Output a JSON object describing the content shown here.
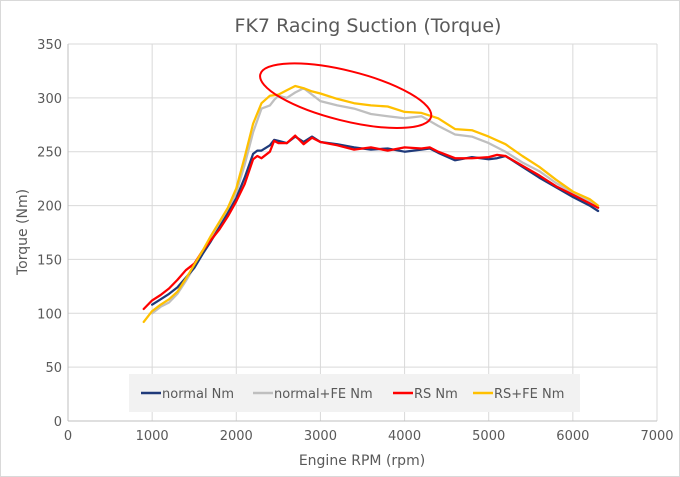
{
  "chart_data": {
    "type": "line",
    "title": "FK7 Racing Suction (Torque)",
    "xlabel": "Engine RPM (rpm)",
    "ylabel": "Torque (Nm)",
    "xlim": [
      0,
      7000
    ],
    "ylim": [
      0,
      350
    ],
    "xticks": [
      0,
      1000,
      2000,
      3000,
      4000,
      5000,
      6000,
      7000
    ],
    "yticks": [
      0,
      50,
      100,
      150,
      200,
      250,
      300,
      350
    ],
    "grid": true,
    "legend_position": "bottom-inside",
    "annotation": {
      "type": "ellipse",
      "color": "#ff0000",
      "center_rpm": 3300,
      "center_nm": 302
    },
    "series": [
      {
        "name": "normal Nm",
        "color": "#1f3a7a",
        "x": [
          1000,
          1100,
          1200,
          1300,
          1400,
          1500,
          1600,
          1700,
          1800,
          1900,
          2000,
          2100,
          2200,
          2250,
          2300,
          2400,
          2450,
          2500,
          2600,
          2700,
          2800,
          2900,
          3000,
          3200,
          3400,
          3600,
          3800,
          4000,
          4200,
          4300,
          4400,
          4600,
          4800,
          5000,
          5100,
          5200,
          5400,
          5600,
          5800,
          6000,
          6200,
          6300
        ],
        "y": [
          108,
          113,
          118,
          124,
          133,
          142,
          155,
          167,
          180,
          193,
          207,
          226,
          248,
          251,
          251,
          256,
          261,
          260,
          258,
          264,
          259,
          264,
          259,
          257,
          254,
          252,
          253,
          250,
          252,
          253,
          249,
          242,
          245,
          243,
          244,
          246,
          236,
          226,
          217,
          208,
          200,
          195
        ]
      },
      {
        "name": "normal+FE Nm",
        "color": "#bfbfbf",
        "x": [
          1000,
          1100,
          1200,
          1300,
          1400,
          1500,
          1600,
          1700,
          1800,
          1900,
          2000,
          2100,
          2200,
          2300,
          2400,
          2450,
          2500,
          2600,
          2700,
          2800,
          2900,
          3000,
          3200,
          3400,
          3600,
          3800,
          4000,
          4200,
          4400,
          4600,
          4800,
          5000,
          5200,
          5400,
          5600,
          5800,
          6000,
          6200,
          6300
        ],
        "y": [
          100,
          106,
          110,
          118,
          130,
          143,
          157,
          170,
          183,
          197,
          212,
          238,
          268,
          290,
          293,
          298,
          302,
          300,
          305,
          309,
          303,
          297,
          293,
          290,
          285,
          283,
          281,
          283,
          274,
          266,
          264,
          258,
          250,
          240,
          232,
          221,
          212,
          204,
          198
        ]
      },
      {
        "name": "RS Nm",
        "color": "#ff0000",
        "x": [
          900,
          1000,
          1100,
          1200,
          1300,
          1400,
          1500,
          1600,
          1700,
          1800,
          1900,
          2000,
          2100,
          2200,
          2250,
          2300,
          2400,
          2450,
          2500,
          2600,
          2700,
          2800,
          2900,
          3000,
          3200,
          3400,
          3600,
          3800,
          4000,
          4200,
          4300,
          4400,
          4600,
          4800,
          5000,
          5100,
          5200,
          5400,
          5600,
          5800,
          6000,
          6200,
          6300
        ],
        "y": [
          104,
          112,
          117,
          123,
          131,
          140,
          146,
          158,
          168,
          178,
          190,
          204,
          220,
          243,
          246,
          244,
          250,
          260,
          258,
          258,
          265,
          257,
          263,
          259,
          256,
          252,
          254,
          251,
          254,
          253,
          254,
          250,
          244,
          244,
          245,
          247,
          246,
          237,
          228,
          218,
          210,
          202,
          198
        ]
      },
      {
        "name": "RS+FE Nm",
        "color": "#ffc000",
        "x": [
          900,
          1000,
          1100,
          1200,
          1300,
          1400,
          1500,
          1600,
          1700,
          1800,
          1900,
          2000,
          2100,
          2200,
          2300,
          2400,
          2500,
          2600,
          2700,
          2800,
          2900,
          3000,
          3200,
          3400,
          3600,
          3800,
          4000,
          4200,
          4400,
          4600,
          4800,
          5000,
          5200,
          5400,
          5600,
          5800,
          6000,
          6200,
          6300
        ],
        "y": [
          92,
          102,
          108,
          113,
          120,
          132,
          145,
          158,
          172,
          185,
          198,
          216,
          245,
          276,
          295,
          302,
          303,
          307,
          311,
          309,
          306,
          304,
          299,
          295,
          293,
          292,
          287,
          286,
          281,
          271,
          270,
          264,
          257,
          246,
          236,
          224,
          213,
          206,
          200
        ]
      }
    ]
  }
}
